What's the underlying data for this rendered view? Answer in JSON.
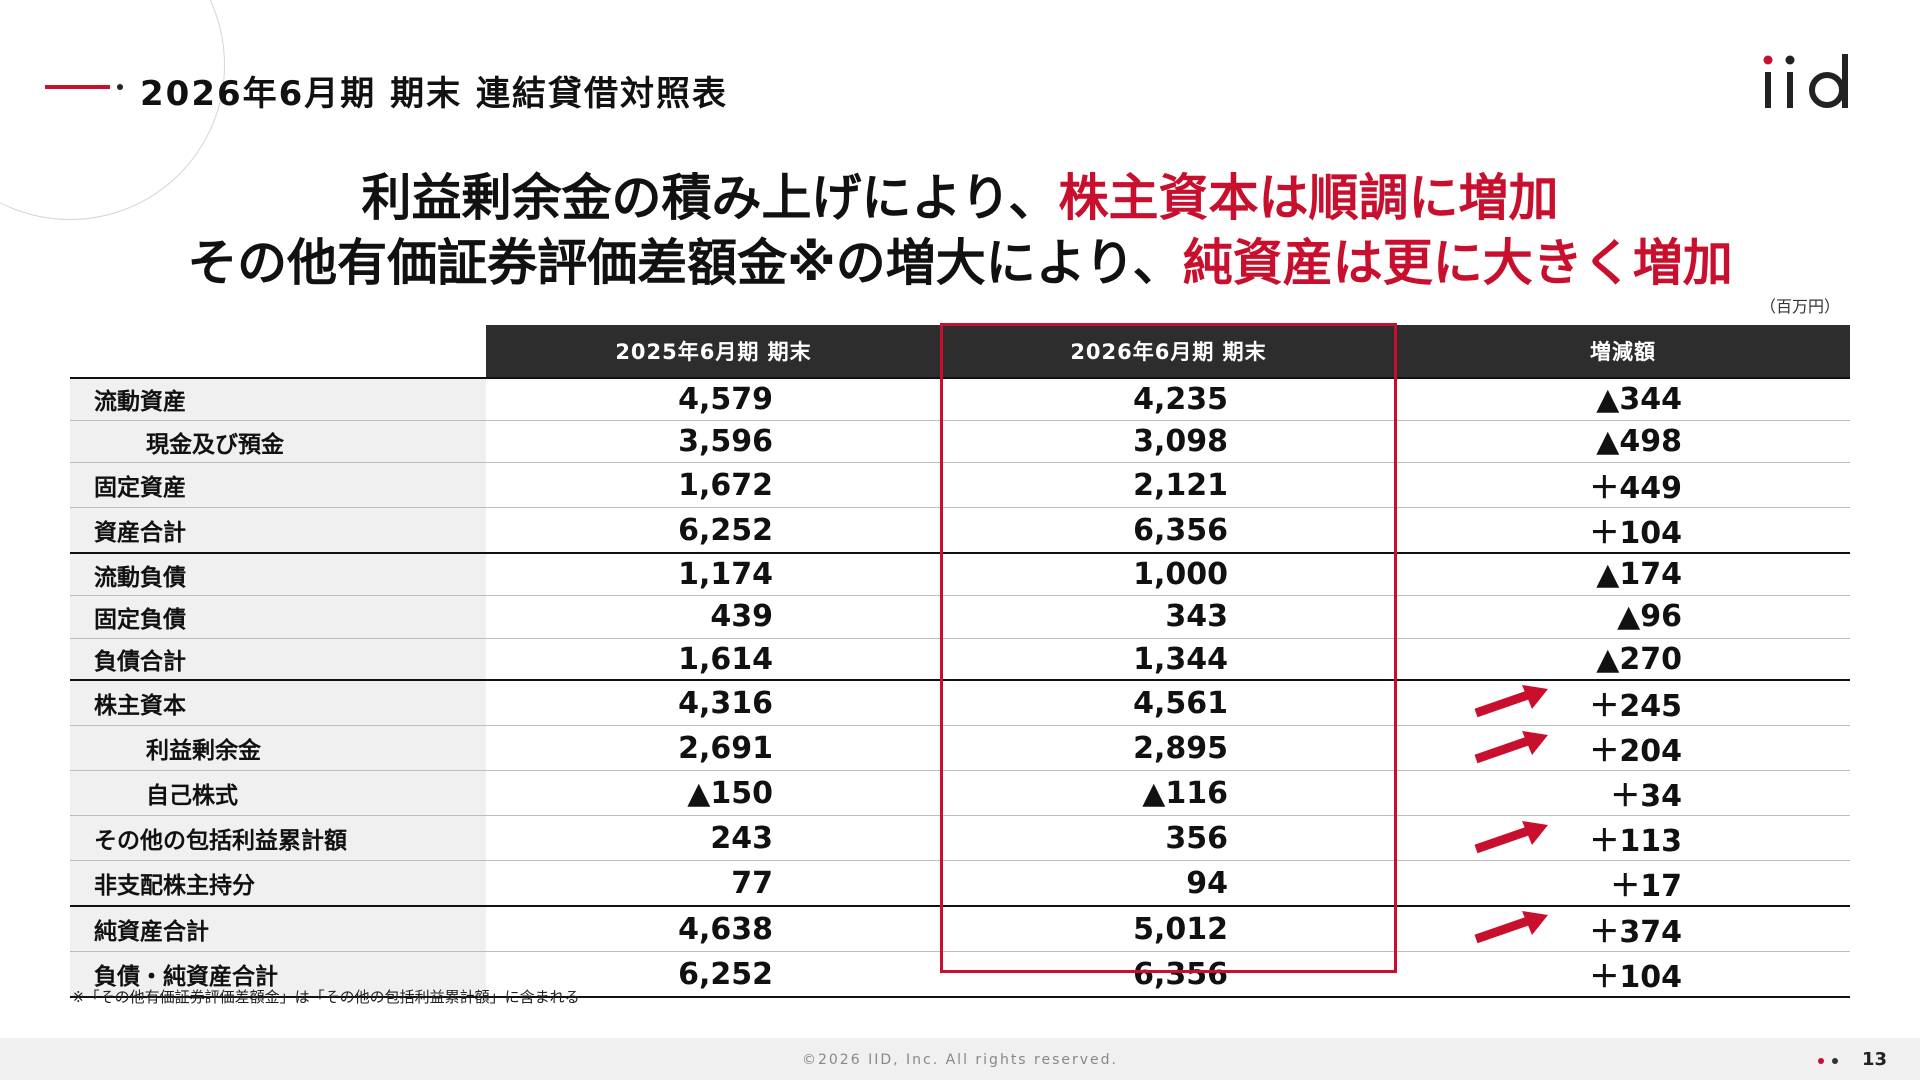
{
  "header": {
    "title": "2026年6月期 期末 連結貸借対照表"
  },
  "brand": {
    "logo_text": "iid",
    "accent_color": "#c8102e"
  },
  "headline": {
    "line1_plain": "利益剰余金の積み上げにより、",
    "line1_highlight": "株主資本は順調に増加",
    "line2_plain": "その他有価証券評価差額金※の増大により、",
    "line2_highlight": "純資産は更に大きく増加"
  },
  "unit_label": "（百万円）",
  "table": {
    "columns": [
      "2025年6月期 期末",
      "2026年6月期 期末",
      "増減額"
    ],
    "highlighted_column": "2026年6月期 期末",
    "rows": [
      {
        "label": "流動資産",
        "prev": "4,579",
        "curr": "4,235",
        "change": "▲344",
        "indent": false,
        "arrow": false
      },
      {
        "label": "現金及び預金",
        "prev": "3,596",
        "curr": "3,098",
        "change": "▲498",
        "indent": true,
        "arrow": false
      },
      {
        "label": "固定資産",
        "prev": "1,672",
        "curr": "2,121",
        "change": "＋449",
        "indent": false,
        "arrow": false
      },
      {
        "label": "資産合計",
        "prev": "6,252",
        "curr": "6,356",
        "change": "＋104",
        "indent": false,
        "arrow": false
      },
      {
        "label": "流動負債",
        "prev": "1,174",
        "curr": "1,000",
        "change": "▲174",
        "indent": false,
        "arrow": false
      },
      {
        "label": "固定負債",
        "prev": "439",
        "curr": "343",
        "change": "▲96",
        "indent": false,
        "arrow": false
      },
      {
        "label": "負債合計",
        "prev": "1,614",
        "curr": "1,344",
        "change": "▲270",
        "indent": false,
        "arrow": false
      },
      {
        "label": "株主資本",
        "prev": "4,316",
        "curr": "4,561",
        "change": "＋245",
        "indent": false,
        "arrow": true
      },
      {
        "label": "利益剰余金",
        "prev": "2,691",
        "curr": "2,895",
        "change": "＋204",
        "indent": true,
        "arrow": true
      },
      {
        "label": "自己株式",
        "prev": "▲150",
        "curr": "▲116",
        "change": "＋34",
        "indent": true,
        "arrow": false
      },
      {
        "label": "その他の包括利益累計額",
        "prev": "243",
        "curr": "356",
        "change": "＋113",
        "indent": false,
        "arrow": true
      },
      {
        "label": "非支配株主持分",
        "prev": "77",
        "curr": "94",
        "change": "＋17",
        "indent": false,
        "arrow": false
      },
      {
        "label": "純資産合計",
        "prev": "4,638",
        "curr": "5,012",
        "change": "＋374",
        "indent": false,
        "arrow": true
      },
      {
        "label": "負債・純資産合計",
        "prev": "6,252",
        "curr": "6,356",
        "change": "＋104",
        "indent": false,
        "arrow": false
      }
    ]
  },
  "footnote": "※「その他有価証券評価差額金」は「その他の包括利益累計額」に含まれる",
  "footer": {
    "copyright": "©2026 IID, Inc.  All rights reserved.",
    "page_number": "13"
  }
}
